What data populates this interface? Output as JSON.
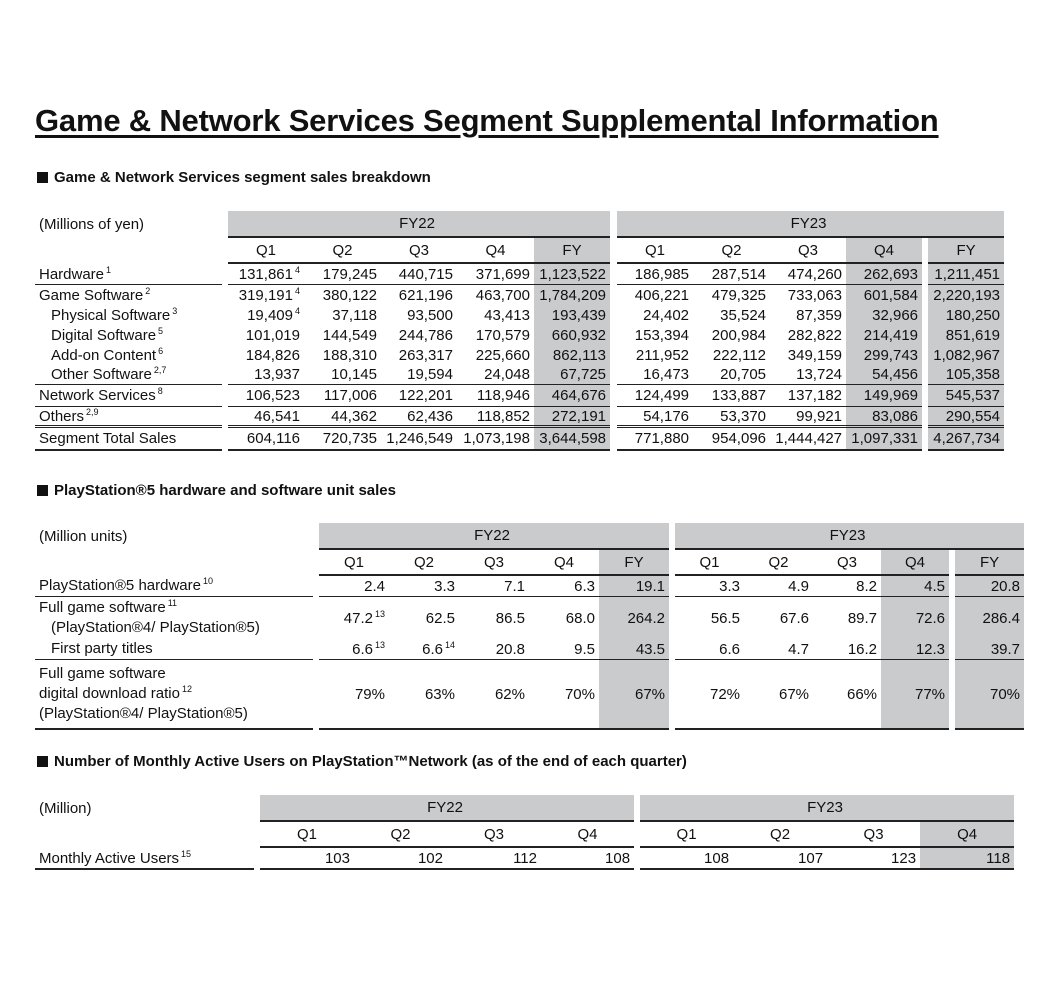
{
  "title": "Game & Network Services Segment Supplemental Information",
  "sections": [
    {
      "heading": "Game & Network Services segment sales breakdown",
      "unit": "(Millions of yen)",
      "groups": [
        "FY22",
        "FY23"
      ],
      "columns": [
        "Q1",
        "Q2",
        "Q3",
        "Q4",
        "FY",
        "Q1",
        "Q2",
        "Q3",
        "Q4",
        "FY"
      ],
      "rows": [
        {
          "label": "Hardware",
          "label_sup": "1",
          "values": [
            "131,861",
            "179,245",
            "440,715",
            "371,699",
            "1,123,522",
            "186,985",
            "287,514",
            "474,260",
            "262,693",
            "1,211,451"
          ],
          "value_sups": {
            "0": "4"
          }
        },
        {
          "label": "Game Software",
          "label_sup": "2",
          "values": [
            "319,191",
            "380,122",
            "621,196",
            "463,700",
            "1,784,209",
            "406,221",
            "479,325",
            "733,063",
            "601,584",
            "2,220,193"
          ],
          "value_sups": {
            "0": "4"
          }
        },
        {
          "label": "Physical Software",
          "label_sup": "3",
          "indent": true,
          "values": [
            "19,409",
            "37,118",
            "93,500",
            "43,413",
            "193,439",
            "24,402",
            "35,524",
            "87,359",
            "32,966",
            "180,250"
          ],
          "value_sups": {
            "0": "4"
          }
        },
        {
          "label": "Digital Software",
          "label_sup": "5",
          "indent": true,
          "values": [
            "101,019",
            "144,549",
            "244,786",
            "170,579",
            "660,932",
            "153,394",
            "200,984",
            "282,822",
            "214,419",
            "851,619"
          ]
        },
        {
          "label": "Add-on Content",
          "label_sup": "6",
          "indent": true,
          "values": [
            "184,826",
            "188,310",
            "263,317",
            "225,660",
            "862,113",
            "211,952",
            "222,112",
            "349,159",
            "299,743",
            "1,082,967"
          ]
        },
        {
          "label": "Other Software",
          "label_sup": "2,7",
          "indent": true,
          "values": [
            "13,937",
            "10,145",
            "19,594",
            "24,048",
            "67,725",
            "16,473",
            "20,705",
            "13,724",
            "54,456",
            "105,358"
          ]
        },
        {
          "label": "Network Services",
          "label_sup": "8",
          "values": [
            "106,523",
            "117,006",
            "122,201",
            "118,946",
            "464,676",
            "124,499",
            "133,887",
            "137,182",
            "149,969",
            "545,537"
          ]
        },
        {
          "label": "Others",
          "label_sup": "2,9",
          "values": [
            "46,541",
            "44,362",
            "62,436",
            "118,852",
            "272,191",
            "54,176",
            "53,370",
            "99,921",
            "83,086",
            "290,554"
          ]
        },
        {
          "label": "Segment Total Sales",
          "values": [
            "604,116",
            "720,735",
            "1,246,549",
            "1,073,198",
            "3,644,598",
            "771,880",
            "954,096",
            "1,444,427",
            "1,097,331",
            "4,267,734"
          ]
        }
      ]
    },
    {
      "heading": "PlayStation®5 hardware and software unit sales",
      "unit": "(Million units)",
      "groups": [
        "FY22",
        "FY23"
      ],
      "columns": [
        "Q1",
        "Q2",
        "Q3",
        "Q4",
        "FY",
        "Q1",
        "Q2",
        "Q3",
        "Q4",
        "FY"
      ],
      "rows": [
        {
          "label_lines": [
            {
              "text": "PlayStation®5 hardware",
              "sup": "10"
            }
          ],
          "values": [
            "2.4",
            "3.3",
            "7.1",
            "6.3",
            "19.1",
            "3.3",
            "4.9",
            "8.2",
            "4.5",
            "20.8"
          ]
        },
        {
          "label_lines": [
            {
              "text": "Full game software",
              "sup": "11"
            },
            {
              "text": "(PlayStation®4/ PlayStation®5)",
              "indent": true
            }
          ],
          "values": [
            "47.2",
            "62.5",
            "86.5",
            "68.0",
            "264.2",
            "56.5",
            "67.6",
            "89.7",
            "72.6",
            "286.4"
          ],
          "value_sups": {
            "0": "13"
          }
        },
        {
          "label_lines": [
            {
              "text": "First party titles",
              "indent": true
            }
          ],
          "values": [
            "6.6",
            "6.6",
            "20.8",
            "9.5",
            "43.5",
            "6.6",
            "4.7",
            "16.2",
            "12.3",
            "39.7"
          ],
          "value_sups": {
            "0": "13",
            "1": "14"
          }
        },
        {
          "label_lines": [
            {
              "text": "Full game software"
            },
            {
              "text": "digital download ratio",
              "sup": "12"
            },
            {
              "text": "(PlayStation®4/ PlayStation®5)"
            }
          ],
          "values": [
            "79%",
            "63%",
            "62%",
            "70%",
            "67%",
            "72%",
            "67%",
            "66%",
            "77%",
            "70%"
          ]
        }
      ]
    },
    {
      "heading": "Number of Monthly Active Users on PlayStation™Network (as of the end of each quarter)",
      "unit": "(Million)",
      "groups": [
        "FY22",
        "FY23"
      ],
      "columns": [
        "Q1",
        "Q2",
        "Q3",
        "Q4",
        "Q1",
        "Q2",
        "Q3",
        "Q4"
      ],
      "rows": [
        {
          "label": "Monthly Active Users",
          "label_sup": "15",
          "values": [
            "103",
            "102",
            "112",
            "108",
            "108",
            "107",
            "123",
            "118"
          ]
        }
      ]
    }
  ],
  "colors": {
    "shade": "#c9cbcd",
    "rule": "#222222"
  }
}
